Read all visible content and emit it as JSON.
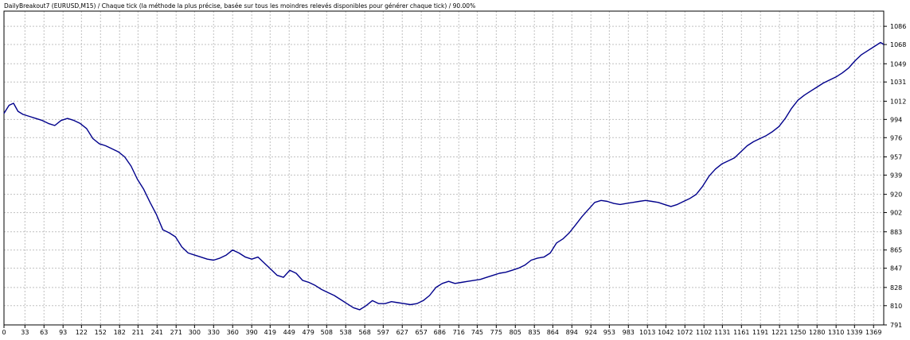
{
  "window": {
    "title": "DailyBreakout7 (EURUSD,M15) / Chaque tick (la méthode la plus précise, basée sur tous les moindres relevés disponibles pour générer chaque tick) / 90.00%"
  },
  "colors": {
    "background": "#ffffff",
    "line": "#00008b",
    "grid": "#c0c0c0",
    "axis": "#000000"
  },
  "chart_data": {
    "type": "line",
    "title": "DailyBreakout7 (EURUSD,M15) / Chaque tick (la méthode la plus précise, basée sur tous les moindres relevés disponibles pour générer chaque tick) / 90.00%",
    "xlabel": "",
    "ylabel": "",
    "grid": true,
    "y_axis_position": "right",
    "xlim": [
      0,
      1385
    ],
    "ylim": [
      791,
      1101
    ],
    "x_ticks": [
      0,
      33,
      63,
      93,
      122,
      152,
      182,
      211,
      241,
      271,
      300,
      330,
      360,
      390,
      419,
      449,
      479,
      508,
      538,
      568,
      597,
      627,
      657,
      686,
      716,
      745,
      775,
      805,
      835,
      864,
      894,
      924,
      953,
      983,
      1013,
      1042,
      1072,
      1102,
      1131,
      1161,
      1191,
      1221,
      1250,
      1280,
      1310,
      1339,
      1369
    ],
    "y_ticks": [
      791,
      810,
      828,
      847,
      865,
      883,
      902,
      920,
      939,
      957,
      976,
      994,
      1012,
      1031,
      1049,
      1068,
      1086
    ],
    "series": [
      {
        "x": [
          0,
          8,
          15,
          22,
          30,
          40,
          50,
          60,
          70,
          80,
          90,
          100,
          110,
          120,
          130,
          140,
          150,
          160,
          170,
          180,
          190,
          200,
          210,
          220,
          230,
          240,
          250,
          260,
          270,
          280,
          290,
          300,
          310,
          320,
          330,
          340,
          350,
          360,
          370,
          380,
          390,
          400,
          410,
          420,
          430,
          440,
          450,
          460,
          470,
          480,
          490,
          500,
          510,
          520,
          530,
          540,
          550,
          560,
          570,
          580,
          590,
          600,
          610,
          620,
          630,
          640,
          650,
          660,
          670,
          680,
          690,
          700,
          710,
          720,
          730,
          740,
          750,
          760,
          770,
          780,
          790,
          800,
          810,
          820,
          830,
          840,
          850,
          860,
          870,
          880,
          890,
          900,
          910,
          920,
          930,
          940,
          950,
          960,
          970,
          980,
          990,
          1000,
          1010,
          1020,
          1030,
          1040,
          1050,
          1060,
          1070,
          1080,
          1090,
          1100,
          1110,
          1120,
          1130,
          1140,
          1150,
          1160,
          1170,
          1180,
          1190,
          1200,
          1210,
          1220,
          1230,
          1240,
          1250,
          1260,
          1270,
          1280,
          1290,
          1300,
          1310,
          1320,
          1330,
          1340,
          1350,
          1360,
          1370,
          1380,
          1385
        ],
        "values": [
          1000,
          1008,
          1010,
          1002,
          999,
          997,
          995,
          993,
          990,
          988,
          993,
          995,
          993,
          990,
          985,
          975,
          970,
          968,
          965,
          962,
          957,
          948,
          935,
          925,
          912,
          900,
          885,
          882,
          878,
          868,
          862,
          860,
          858,
          856,
          855,
          857,
          860,
          865,
          862,
          858,
          856,
          858,
          852,
          846,
          840,
          838,
          845,
          842,
          835,
          833,
          830,
          826,
          823,
          820,
          816,
          812,
          808,
          806,
          810,
          815,
          812,
          812,
          814,
          813,
          812,
          811,
          812,
          815,
          820,
          828,
          832,
          834,
          832,
          833,
          834,
          835,
          836,
          838,
          840,
          842,
          843,
          845,
          847,
          850,
          855,
          857,
          858,
          862,
          872,
          876,
          882,
          890,
          898,
          905,
          912,
          914,
          913,
          911,
          910,
          911,
          912,
          913,
          914,
          913,
          912,
          910,
          908,
          910,
          913,
          916,
          920,
          928,
          938,
          945,
          950,
          953,
          956,
          962,
          968,
          972,
          975,
          978,
          982,
          987,
          995,
          1005,
          1013,
          1018,
          1022,
          1026,
          1030,
          1033,
          1036,
          1040,
          1045,
          1052,
          1058,
          1062,
          1066,
          1070,
          1068
        ]
      }
    ]
  }
}
